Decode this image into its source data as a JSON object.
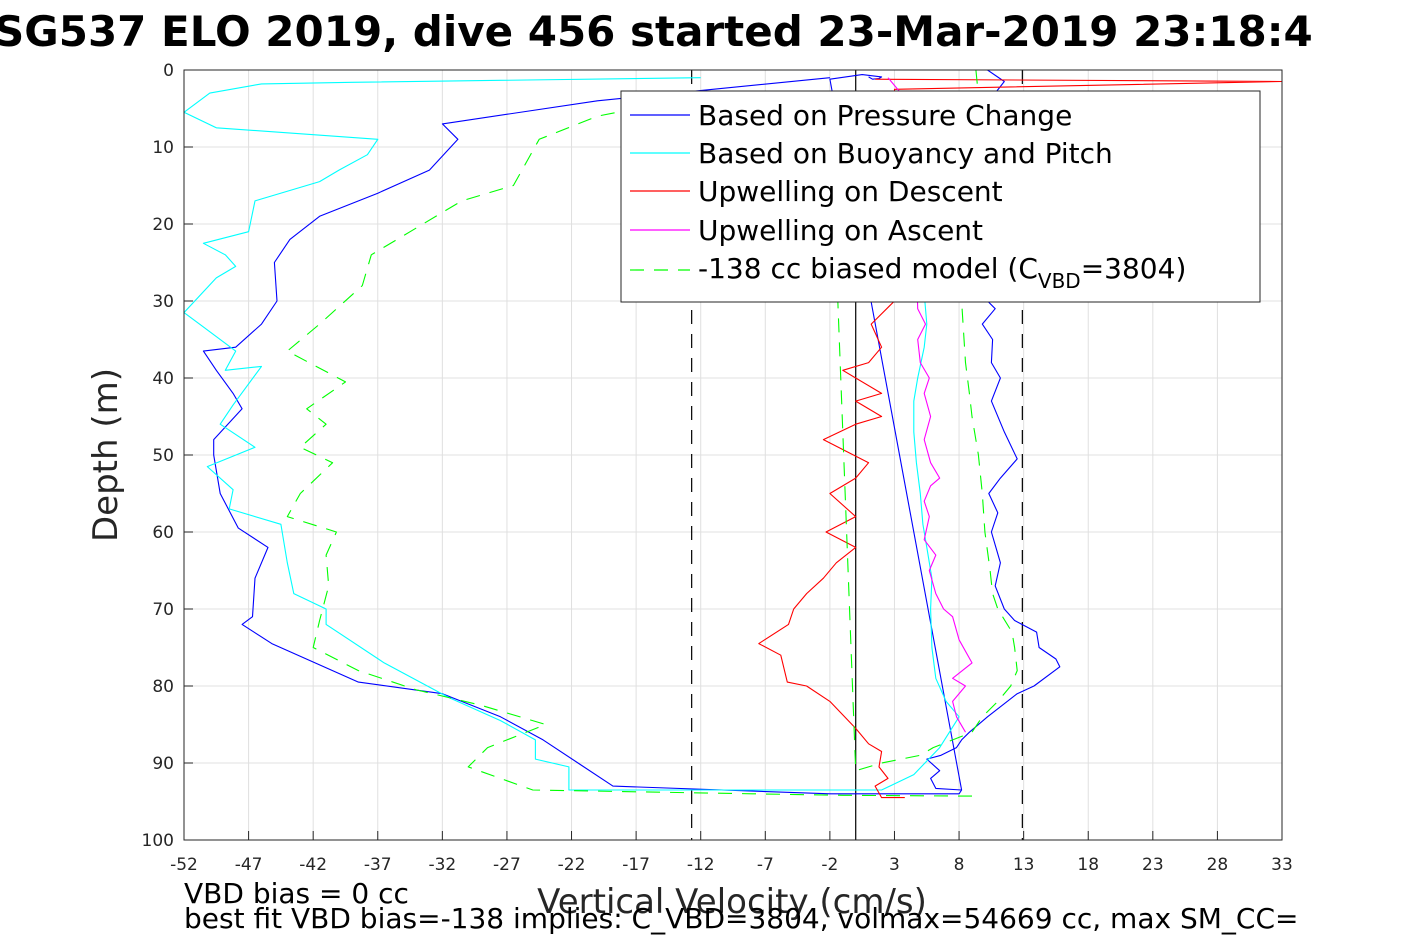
{
  "chart_data": {
    "type": "line",
    "title": "SG537 ELO 2019, dive 456 started 23-Mar-2019 23:18:4",
    "xlabel": "Vertical Velocity (cm/s)",
    "ylabel": "Depth (m)",
    "xlim": [
      -52,
      33
    ],
    "ylim": [
      0,
      100
    ],
    "y_reversed": true,
    "grid": true,
    "xticks": [
      "-52",
      "-47",
      "-42",
      "-37",
      "-32",
      "-27",
      "-22",
      "-17",
      "-12",
      "-7",
      "-2",
      "3",
      "8",
      "13",
      "18",
      "23",
      "28",
      "33"
    ],
    "yticks": [
      "0",
      "10",
      "20",
      "30",
      "40",
      "50",
      "60",
      "70",
      "80",
      "90",
      "100"
    ],
    "reference_lines": [
      {
        "x": -12.7,
        "style": "dashed",
        "color": "#000000"
      },
      {
        "x": 0,
        "style": "solid",
        "color": "#000000"
      },
      {
        "x": 12.9,
        "style": "dashed",
        "color": "#000000"
      }
    ],
    "legend": {
      "location": "top-right",
      "entries": [
        {
          "label": "Based on Pressure Change",
          "color": "#0000ff",
          "style": "solid"
        },
        {
          "label": "Based on Buoyancy and Pitch",
          "color": "#00ffff",
          "style": "solid"
        },
        {
          "label": "Upwelling on Descent",
          "color": "#ff0000",
          "style": "solid"
        },
        {
          "label": "Upwelling on Ascent",
          "color": "#ff00ff",
          "style": "solid"
        },
        {
          "label_main": "-138 cc biased model (C",
          "label_sub": "VBD",
          "label_end": "=3804)",
          "color": "#00ff00",
          "style": "dashed"
        }
      ]
    },
    "series": [
      {
        "name": "Based on Pressure Change",
        "color": "#0000ff",
        "style": "solid",
        "x": [
          -2,
          -20,
          -32,
          -30.8,
          -33,
          -37,
          -41.5,
          -43.8,
          -45,
          -44.8,
          -46,
          -48,
          -50.5,
          -49.5,
          -48.2,
          -47.5,
          -49.7,
          -49.7,
          -49.2,
          -47.8,
          -45.5,
          -46.5,
          -46.7,
          -47.5,
          -45.2,
          -38.5,
          -32,
          -27.5,
          -24.2,
          -21.5,
          -18.8,
          -2,
          8,
          8.2,
          -2,
          0.5,
          2,
          1.8,
          1.3,
          1
        ],
        "y": [
          1,
          4,
          7,
          9,
          13,
          16,
          19,
          22,
          25,
          30,
          33,
          36,
          36.5,
          39,
          42,
          44,
          48,
          50,
          55,
          59.5,
          62,
          66,
          71,
          72,
          74.5,
          79.5,
          81,
          84,
          87,
          90,
          93,
          94,
          94,
          93.5,
          1.2,
          0.6,
          0.9,
          1.1,
          1.2,
          0.9
        ]
      },
      {
        "name": "Based on Pressure Change (ascent)",
        "color": "#0000ff",
        "style": "solid",
        "x": [
          8.2,
          6.2,
          5.8,
          6.5,
          5.5,
          6.6,
          7.8,
          8.2,
          8.8,
          10.2,
          12.5,
          13.8,
          15.8,
          15.5,
          14.2,
          14,
          12.3,
          11.5,
          10.8,
          11.2,
          10.5,
          11,
          10.3,
          11.2,
          12.5,
          11.5,
          10.5,
          11.2,
          10.5,
          10.6,
          9.8,
          10.8,
          10.2,
          10.7,
          10.9,
          10.6,
          10.7,
          10.4,
          10.8,
          11.5,
          10.2
        ],
        "y": [
          93.5,
          93.3,
          92,
          91,
          89.5,
          89,
          88,
          87,
          86,
          84,
          81,
          80,
          77.5,
          76.5,
          75,
          73,
          71.5,
          70,
          67,
          64,
          60,
          57.5,
          55,
          53,
          50.5,
          47,
          43,
          40,
          38,
          35,
          33,
          31,
          30,
          25,
          20,
          15,
          10,
          6,
          3,
          1.5,
          0
        ]
      },
      {
        "name": "Based on Buoyancy and Pitch",
        "color": "#00ffff",
        "style": "solid",
        "x": [
          -12,
          -39,
          -46,
          -50,
          -52,
          -49.5,
          -37,
          -37.8,
          -40,
          -41.5,
          -46.5,
          -47,
          -50.5,
          -48.8,
          -48,
          -49.5,
          -52,
          -50.8,
          -48,
          -48.8,
          -46,
          -48.2,
          -49.2,
          -46.5,
          -50.2,
          -48.2,
          -48.5,
          -44.5,
          -44,
          -43.5,
          -41,
          -41,
          -36.5,
          -31.5,
          -27.5,
          -24.8,
          -24.8,
          -22.2,
          -22.2,
          -17,
          2,
          4.5,
          6.5,
          8,
          7,
          6.2,
          5.9,
          5.8,
          5.9,
          5.5,
          5.2,
          5,
          4.7,
          4.5,
          4.5,
          4.8,
          5.3,
          5.5,
          5.3,
          5.5,
          5.4,
          5.6,
          5.3
        ],
        "y": [
          1,
          1.6,
          1.8,
          3,
          5.5,
          7.5,
          9,
          11,
          13,
          14.5,
          17,
          21,
          22.5,
          24,
          25.5,
          27,
          31.5,
          33,
          36.5,
          39,
          38.5,
          43.5,
          46,
          49,
          51.5,
          54.5,
          57,
          59,
          64,
          68,
          70,
          72,
          77,
          81.5,
          84.5,
          87,
          89.5,
          90.5,
          93.5,
          93.5,
          93.5,
          91.5,
          88,
          84,
          82,
          79,
          75,
          70,
          66,
          62,
          59,
          55,
          51,
          47,
          43,
          40,
          36,
          33,
          29,
          25,
          20,
          15,
          10
        ]
      },
      {
        "name": "Upwelling on Descent",
        "color": "#ff0000",
        "style": "solid",
        "x": [
          3.8,
          2,
          1.5,
          2.5,
          1.8,
          2,
          1,
          0,
          -2,
          -3.8,
          -5.3,
          -5.8,
          -7.5,
          -5.2,
          -4.8,
          -3.8,
          -2.5,
          -1.5,
          0,
          -2.3,
          0,
          -2,
          0,
          1,
          -2.5,
          0,
          2,
          0,
          2,
          0,
          -1,
          1,
          2,
          1.2,
          3,
          3,
          33,
          1.5
        ],
        "y": [
          94.5,
          94.5,
          93,
          92,
          90.5,
          88.5,
          87.5,
          85.5,
          82,
          80,
          79.5,
          76,
          74.5,
          72,
          70,
          68,
          66,
          64,
          62,
          60,
          58,
          55,
          53,
          51,
          48,
          46,
          45,
          43,
          42,
          40,
          39,
          38,
          36,
          33,
          30,
          2.5,
          1.5,
          1.2
        ]
      },
      {
        "name": "Upwelling on Ascent",
        "color": "#ff00ff",
        "style": "solid",
        "x": [
          8.5,
          7.8,
          7.5,
          8.5,
          7.5,
          9,
          8,
          7.5,
          6.8,
          6.2,
          5.7,
          6.2,
          5.3,
          5.7,
          5.3,
          5.8,
          6.5,
          5.8,
          5.3,
          5.8,
          5.3,
          5.7,
          5,
          4.8,
          5.4,
          4.8,
          4.7,
          5,
          5.7,
          4.6,
          3.5,
          2.5
        ],
        "y": [
          86,
          84,
          82,
          80,
          79,
          77,
          74,
          71,
          70,
          68,
          65,
          63,
          61,
          58,
          56,
          54,
          53,
          51,
          48,
          45,
          42,
          40,
          38,
          35,
          33,
          31,
          25,
          20,
          15,
          8,
          3,
          1
        ]
      },
      {
        "name": "-138 cc biased model (C_VBD=3804)",
        "color": "#00ff00",
        "style": "dashed",
        "x": [
          9,
          -1,
          -8,
          -25,
          -30,
          -28.5,
          -24,
          -29,
          -34,
          -38.5,
          -42,
          -41.5,
          -40.8,
          -41,
          -40.2,
          -44,
          -43,
          -40.5,
          -43,
          -41,
          -42.5,
          -39.5,
          -44,
          -41.5,
          -38.2,
          -37.5,
          -34.5,
          -30.5,
          -26.5,
          -24.5,
          -20,
          -15.5,
          -12.5,
          -2,
          0,
          2,
          5,
          6,
          9,
          9.8,
          11,
          12,
          12.5,
          12.3,
          12.1,
          11,
          10.6,
          10.4,
          10,
          9.8,
          9.5,
          9,
          8.8,
          8.5,
          8.2,
          8.7,
          9.3,
          9.6,
          9.3
        ],
        "y": [
          94.3,
          94.2,
          94,
          93.5,
          90.5,
          88,
          85,
          82.5,
          80.5,
          78,
          75,
          71.5,
          67,
          63,
          60,
          58,
          55,
          51,
          49,
          46,
          44,
          40.5,
          36.5,
          33,
          28,
          24,
          21,
          17,
          15,
          9,
          6,
          4.5,
          4,
          3,
          91,
          90,
          89,
          88,
          86,
          84,
          82,
          80,
          78,
          75,
          73,
          70,
          68,
          65,
          60,
          55,
          50,
          45,
          42,
          38,
          30,
          20,
          10,
          5,
          0
        ]
      }
    ],
    "annotations": [
      "VBD bias = 0 cc",
      "best fit VBD bias=-138 implies: C_VBD=3804, volmax=54669 cc, max SM_CC="
    ]
  }
}
